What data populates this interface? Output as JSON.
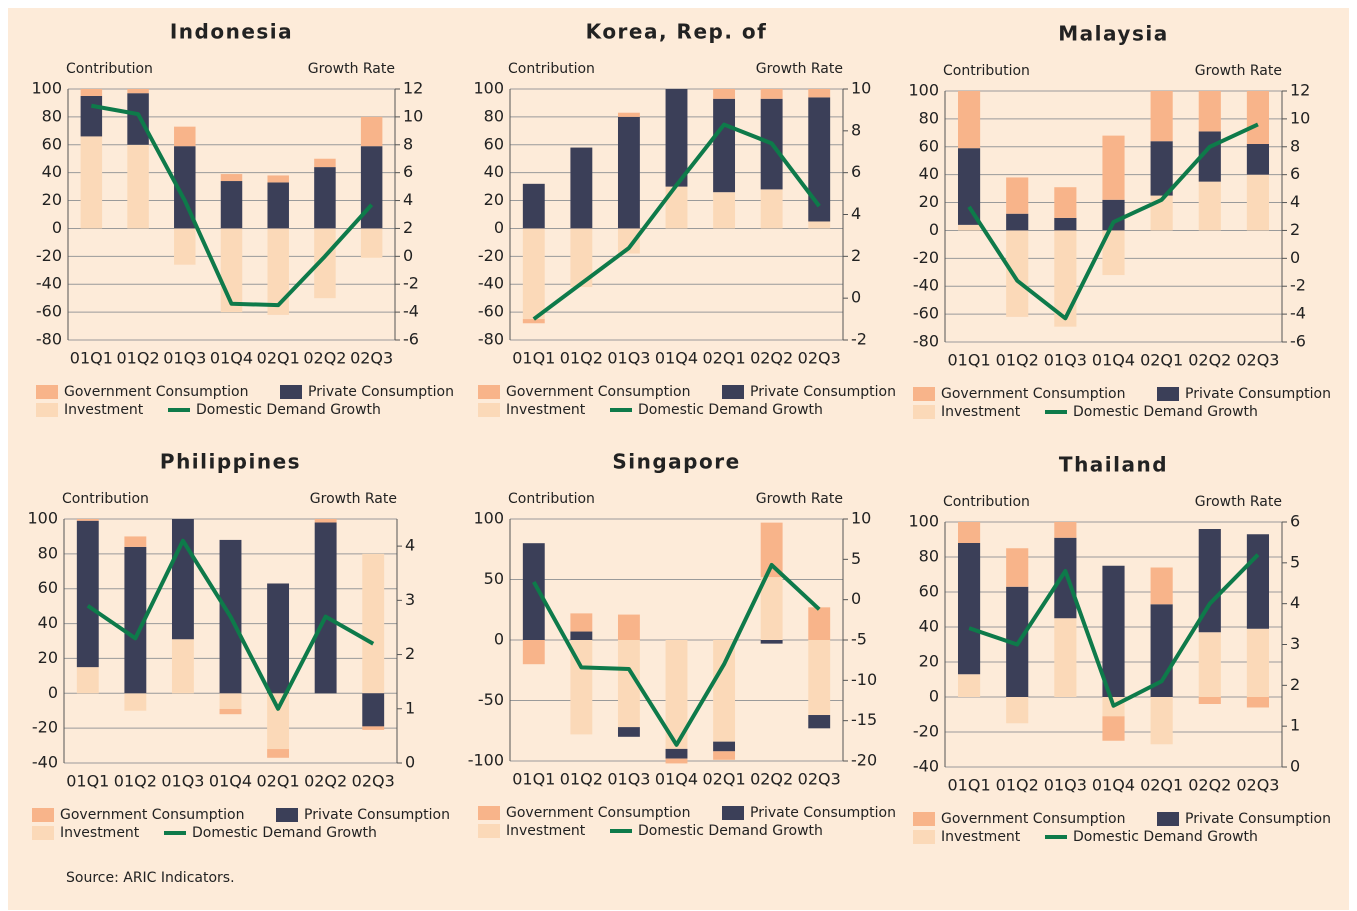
{
  "chart_data": [
    {
      "type": "bar",
      "title": "Indonesia",
      "y_label": "Contribution",
      "y2_label": "Growth Rate",
      "categories": [
        "01Q1",
        "01Q2",
        "01Q3",
        "01Q4",
        "02Q1",
        "02Q2",
        "02Q3"
      ],
      "series": [
        {
          "name": "Government Consumption",
          "color": "#f8b48a",
          "values": [
            5,
            3,
            14,
            5,
            5,
            6,
            21
          ]
        },
        {
          "name": "Private Consumption",
          "color": "#3b3f58",
          "values": [
            29,
            37,
            59,
            34,
            33,
            44,
            59
          ]
        },
        {
          "name": "Investment",
          "color": "#fbd9b8",
          "values": [
            66,
            60,
            -26,
            -60,
            -62,
            -50,
            -21
          ]
        },
        {
          "name": "Domestic Demand Growth",
          "color": "#0e7a4a",
          "axis": "y2",
          "values": [
            10.8,
            10.2,
            4,
            -3.4,
            -3.5,
            0,
            3.7
          ]
        }
      ],
      "ylim": [
        -80,
        100
      ],
      "yticks": [
        -80,
        -60,
        -40,
        -20,
        0,
        20,
        40,
        60,
        80,
        100
      ],
      "y2lim": [
        -6,
        12
      ],
      "y2ticks": [
        -6,
        -4,
        -2,
        0,
        2,
        4,
        6,
        8,
        10,
        12
      ],
      "grid": true
    },
    {
      "type": "bar",
      "title": "Korea, Rep. of",
      "y_label": "Contribution",
      "y2_label": "Growth Rate",
      "categories": [
        "01Q1",
        "01Q2",
        "01Q3",
        "01Q4",
        "02Q1",
        "02Q2",
        "02Q3"
      ],
      "series": [
        {
          "name": "Government Consumption",
          "color": "#f8b48a",
          "values": [
            -3,
            0,
            3,
            0,
            7,
            7,
            6
          ]
        },
        {
          "name": "Private Consumption",
          "color": "#3b3f58",
          "values": [
            32,
            58,
            80,
            70,
            67,
            65,
            89
          ]
        },
        {
          "name": "Investment",
          "color": "#fbd9b8",
          "values": [
            -65,
            -42,
            -18,
            30,
            26,
            28,
            5
          ]
        },
        {
          "name": "Domestic Demand Growth",
          "color": "#0e7a4a",
          "axis": "y2",
          "values": [
            -1,
            0.7,
            2.4,
            5.4,
            8.3,
            7.4,
            4.4
          ]
        }
      ],
      "ylim": [
        -80,
        100
      ],
      "yticks": [
        -80,
        -60,
        -40,
        -20,
        0,
        20,
        40,
        60,
        80,
        100
      ],
      "y2lim": [
        -2,
        10
      ],
      "y2ticks": [
        -2,
        0,
        2,
        4,
        6,
        8,
        10
      ],
      "grid": true
    },
    {
      "type": "bar",
      "title": "Malaysia",
      "y_label": "Contribution",
      "y2_label": "Growth Rate",
      "categories": [
        "01Q1",
        "01Q2",
        "01Q3",
        "01Q4",
        "02Q1",
        "02Q2",
        "02Q3"
      ],
      "series": [
        {
          "name": "Government Consumption",
          "color": "#f8b48a",
          "values": [
            41,
            26,
            22,
            46,
            36,
            29,
            38
          ]
        },
        {
          "name": "Private Consumption",
          "color": "#3b3f58",
          "values": [
            55,
            12,
            9,
            22,
            39,
            36,
            22
          ]
        },
        {
          "name": "Investment",
          "color": "#fbd9b8",
          "values": [
            4,
            -62,
            -69,
            -32,
            25,
            35,
            40
          ]
        },
        {
          "name": "Domestic Demand Growth",
          "color": "#0e7a4a",
          "axis": "y2",
          "values": [
            3.7,
            -1.6,
            -4.3,
            2.6,
            4.2,
            8,
            9.6
          ]
        }
      ],
      "ylim": [
        -80,
        100
      ],
      "yticks": [
        -80,
        -60,
        -40,
        -20,
        0,
        20,
        40,
        60,
        80,
        100
      ],
      "y2lim": [
        -6,
        12
      ],
      "y2ticks": [
        -6,
        -4,
        -2,
        0,
        2,
        4,
        6,
        8,
        10,
        12
      ],
      "grid": true
    },
    {
      "type": "bar",
      "title": "Philippines",
      "y_label": "Contribution",
      "y2_label": "Growth Rate",
      "categories": [
        "01Q1",
        "01Q2",
        "01Q3",
        "01Q4",
        "02Q1",
        "02Q2",
        "02Q3"
      ],
      "series": [
        {
          "name": "Government Consumption",
          "color": "#f8b48a",
          "values": [
            1,
            6,
            0,
            -3,
            -5,
            2,
            -2
          ]
        },
        {
          "name": "Private Consumption",
          "color": "#3b3f58",
          "values": [
            84,
            84,
            69,
            88,
            63,
            98,
            -19
          ]
        },
        {
          "name": "Investment",
          "color": "#fbd9b8",
          "values": [
            15,
            -10,
            31,
            -9,
            -32,
            0,
            80
          ]
        },
        {
          "name": "Domestic Demand Growth",
          "color": "#0e7a4a",
          "axis": "y2",
          "values": [
            2.9,
            2.3,
            4.1,
            2.7,
            1,
            2.7,
            2.2
          ]
        }
      ],
      "ylim": [
        -40,
        100
      ],
      "yticks": [
        -40,
        -20,
        0,
        20,
        40,
        60,
        80,
        100
      ],
      "y2lim": [
        0,
        4.5
      ],
      "y2ticks": [
        0,
        1,
        2,
        3,
        4
      ],
      "grid": true
    },
    {
      "type": "bar",
      "title": "Singapore",
      "y_label": "Contribution",
      "y2_label": "Growth Rate",
      "categories": [
        "01Q1",
        "01Q2",
        "01Q3",
        "01Q4",
        "02Q1",
        "02Q2",
        "02Q3"
      ],
      "series": [
        {
          "name": "Government Consumption",
          "color": "#f8b48a",
          "values": [
            -20,
            15,
            21,
            -4,
            -7,
            45,
            27
          ]
        },
        {
          "name": "Private Consumption",
          "color": "#3b3f58",
          "values": [
            80,
            7,
            -8,
            -8,
            -8,
            -3,
            -11
          ]
        },
        {
          "name": "Investment",
          "color": "#fbd9b8",
          "values": [
            0,
            -78,
            -72,
            -90,
            -84,
            52,
            -62
          ]
        },
        {
          "name": "Domestic Demand Growth",
          "color": "#0e7a4a",
          "axis": "y2",
          "values": [
            2.2,
            -8.4,
            -8.6,
            -18,
            -8,
            4.3,
            -1.2
          ]
        }
      ],
      "ylim": [
        -100,
        100
      ],
      "yticks": [
        -100,
        -50,
        0,
        50,
        100
      ],
      "y2lim": [
        -20,
        10
      ],
      "y2ticks": [
        -20,
        -15,
        -10,
        -5,
        0,
        5,
        10
      ],
      "grid": true
    },
    {
      "type": "bar",
      "title": "Thailand",
      "y_label": "Contribution",
      "y2_label": "Growth Rate",
      "categories": [
        "01Q1",
        "01Q2",
        "01Q3",
        "01Q4",
        "02Q1",
        "02Q2",
        "02Q3"
      ],
      "series": [
        {
          "name": "Government Consumption",
          "color": "#f8b48a",
          "values": [
            12,
            22,
            9,
            -14,
            21,
            -4,
            -6
          ]
        },
        {
          "name": "Private Consumption",
          "color": "#3b3f58",
          "values": [
            75,
            63,
            46,
            75,
            53,
            59,
            54
          ]
        },
        {
          "name": "Investment",
          "color": "#fbd9b8",
          "values": [
            13,
            -15,
            45,
            -11,
            -27,
            37,
            39
          ]
        },
        {
          "name": "Domestic Demand Growth",
          "color": "#0e7a4a",
          "axis": "y2",
          "values": [
            3.4,
            3,
            4.8,
            1.5,
            2.1,
            4,
            5.2
          ]
        }
      ],
      "ylim": [
        -40,
        100
      ],
      "yticks": [
        -40,
        -20,
        0,
        20,
        40,
        60,
        80,
        100
      ],
      "y2lim": [
        0,
        6
      ],
      "y2ticks": [
        0,
        1,
        2,
        3,
        4,
        5,
        6
      ],
      "grid": true
    }
  ],
  "source": "Source: ARIC Indicators."
}
